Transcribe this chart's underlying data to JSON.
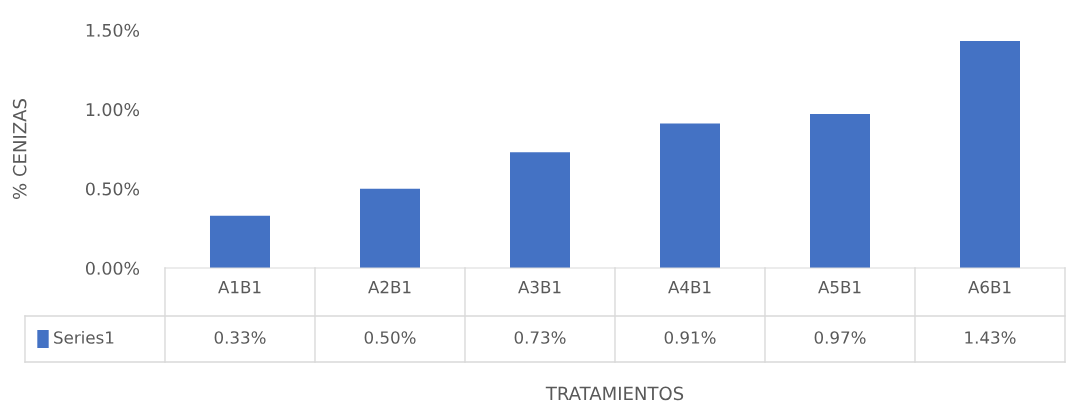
{
  "chart_data": {
    "type": "bar",
    "annotations": [
      "TRATAMIENTOS"
    ],
    "ylabel": "% CENIZAS",
    "categories": [
      "A1B1",
      "A2B1",
      "A3B1",
      "A4B1",
      "A5B1",
      "A6B1"
    ],
    "series": [
      {
        "name": "Series1",
        "color": "#4472c4",
        "values": [
          0.33,
          0.5,
          0.73,
          0.91,
          0.97,
          1.43
        ],
        "value_labels": [
          "0.33%",
          "0.50%",
          "0.73%",
          "0.91%",
          "0.97%",
          "1.43%"
        ]
      }
    ],
    "ylim": [
      0,
      1.5
    ],
    "yticks": [
      {
        "value": 0,
        "label": "0.00%"
      },
      {
        "value": 0.5,
        "label": "0.50%"
      },
      {
        "value": 1.0,
        "label": "1.00%"
      },
      {
        "value": 1.5,
        "label": "1.50%"
      }
    ],
    "grid": false,
    "legend": "bottom"
  }
}
